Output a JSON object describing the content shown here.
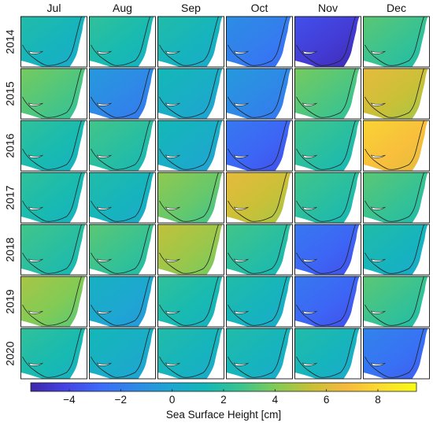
{
  "chart_data": {
    "type": "heatmap",
    "title": "",
    "columns": [
      "Jul",
      "Aug",
      "Sep",
      "Oct",
      "Nov",
      "Dec"
    ],
    "rows": [
      "2014",
      "2015",
      "2016",
      "2017",
      "2018",
      "2019",
      "2020"
    ],
    "description_unit": "cm",
    "values_approx_mean_ssh": [
      [
        1.0,
        1.5,
        1.0,
        -2.0,
        -4.5,
        2.5
      ],
      [
        3.0,
        -1.5,
        0.5,
        -1.5,
        3.0,
        5.5
      ],
      [
        1.5,
        2.0,
        0.5,
        -3.0,
        2.0,
        7.0
      ],
      [
        1.5,
        1.0,
        3.5,
        5.5,
        2.0,
        2.5
      ],
      [
        2.0,
        2.5,
        4.5,
        2.0,
        -3.0,
        1.0
      ],
      [
        4.0,
        0.0,
        1.5,
        1.0,
        -3.0,
        2.5
      ],
      [
        1.5,
        0.5,
        1.0,
        1.0,
        1.0,
        -2.5
      ]
    ],
    "colorbar": {
      "label": "Sea Surface Height [cm]",
      "range": [
        -5.5,
        9.5
      ],
      "ticks": [
        "−4",
        "−2",
        "0",
        "2",
        "4",
        "6",
        "8"
      ],
      "tick_values": [
        -4,
        -2,
        0,
        2,
        4,
        6,
        8
      ],
      "colormap": "parula",
      "colors": [
        "#3e26a8",
        "#4543e4",
        "#3b6cf8",
        "#2e8ae6",
        "#1ea6d2",
        "#13b8b6",
        "#3cc48e",
        "#83cb54",
        "#c7c038",
        "#f7b93f",
        "#fadd2f",
        "#f9fb14"
      ]
    },
    "grid": true,
    "legend": "bottom"
  }
}
